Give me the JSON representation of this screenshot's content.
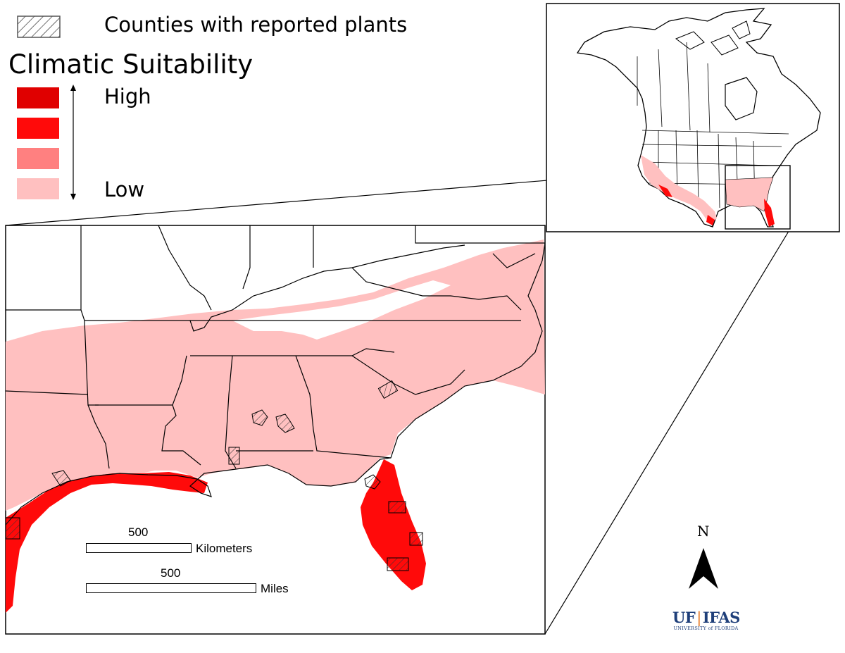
{
  "legend": {
    "hatch_label": "Counties with reported plants",
    "title": "Climatic Suitability",
    "high_label": "High",
    "low_label": "Low",
    "classes": [
      {
        "level": "highest",
        "color": "#e00000"
      },
      {
        "level": "high",
        "color": "#ff0a0a"
      },
      {
        "level": "medium",
        "color": "#ff8080"
      },
      {
        "level": "low",
        "color": "#ffc0c0"
      }
    ]
  },
  "scale_bar": {
    "km_value": "500",
    "km_unit": "Kilometers",
    "mi_value": "500",
    "mi_unit": "Miles"
  },
  "north_arrow": {
    "label": "N"
  },
  "logo": {
    "main_left": "UF",
    "main_right": "IFAS",
    "sub": "UNIVERSITY of FLORIDA"
  }
}
